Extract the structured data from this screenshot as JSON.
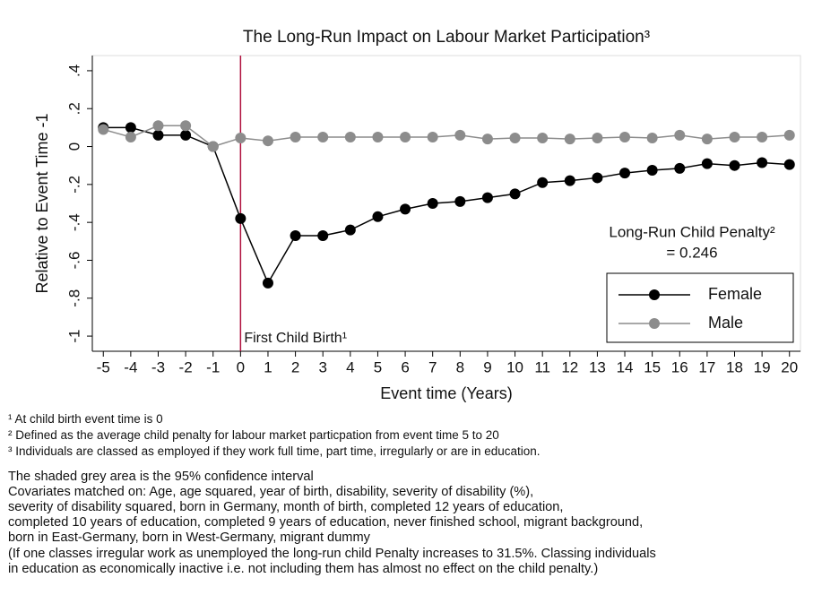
{
  "chart_data": {
    "type": "line",
    "title": "The Long-Run Impact on Labour Market Participation³",
    "x_label": "Event time (Years)",
    "y_label": "Relative to Event Time -1",
    "x": [
      -5,
      -4,
      -3,
      -2,
      -1,
      0,
      1,
      2,
      3,
      4,
      5,
      6,
      7,
      8,
      9,
      10,
      11,
      12,
      13,
      14,
      15,
      16,
      17,
      18,
      19,
      20
    ],
    "series": [
      {
        "name": "Female",
        "color": "#000000",
        "values": [
          0.1,
          0.1,
          0.06,
          0.06,
          0,
          -0.38,
          -0.72,
          -0.47,
          -0.47,
          -0.44,
          -0.37,
          -0.33,
          -0.3,
          -0.29,
          -0.27,
          -0.25,
          -0.19,
          -0.18,
          -0.165,
          -0.14,
          -0.125,
          -0.115,
          -0.09,
          -0.1,
          -0.085,
          -0.095
        ]
      },
      {
        "name": "Male",
        "color": "#8c8c8c",
        "values": [
          0.09,
          0.05,
          0.11,
          0.11,
          0,
          0.045,
          0.03,
          0.05,
          0.05,
          0.05,
          0.05,
          0.05,
          0.05,
          0.06,
          0.04,
          0.045,
          0.045,
          0.04,
          0.045,
          0.05,
          0.045,
          0.06,
          0.04,
          0.05,
          0.05,
          0.06
        ]
      }
    ],
    "xlim": [
      -5.4,
      20.4
    ],
    "xticks": [
      -5,
      -4,
      -3,
      -2,
      -1,
      0,
      1,
      2,
      3,
      4,
      5,
      6,
      7,
      8,
      9,
      10,
      11,
      12,
      13,
      14,
      15,
      16,
      17,
      18,
      19,
      20
    ],
    "ylim": [
      -1.08,
      0.48
    ],
    "yticks": [
      {
        "value": 0.4,
        "label": ".4"
      },
      {
        "value": 0.2,
        "label": ".2"
      },
      0,
      {
        "value": -0.2,
        "label": "-.2"
      },
      {
        "value": -0.4,
        "label": "-.4"
      },
      {
        "value": -0.6,
        "label": "-.6"
      },
      {
        "value": -0.8,
        "label": "-.8"
      },
      -1
    ],
    "reference_line": {
      "x": 0,
      "color": "#b0123f",
      "label": "First Child Birth¹"
    },
    "annotation": [
      "Long-Run Child Penalty²",
      "= 0.246"
    ],
    "legend": "lower right",
    "notes": [
      "¹ At child birth event time is 0",
      "² Defined as the average child penalty for labour market particpation from event time 5 to 20",
      "³ Individuals are classed as employed if they work full time, part time, irregularly or are in education.",
      "The shaded grey area is the 95% confidence interval",
      "Covariates matched on: Age, age squared, year of birth, disability, severity of disability (%),",
      "severity of disability squared, born in Germany, month of birth, completed 12 years of education,",
      "completed 10 years of education, completed 9 years of education, never finished school, migrant background,",
      "born in East-Germany, born in West-Germany, migrant dummy",
      "(If one classes irregular work as unemployed the long-run child Penalty increases to 31.5%. Classing individuals",
      "in education as economically inactive i.e. not including them has almost no effect on the child penalty.)"
    ]
  }
}
